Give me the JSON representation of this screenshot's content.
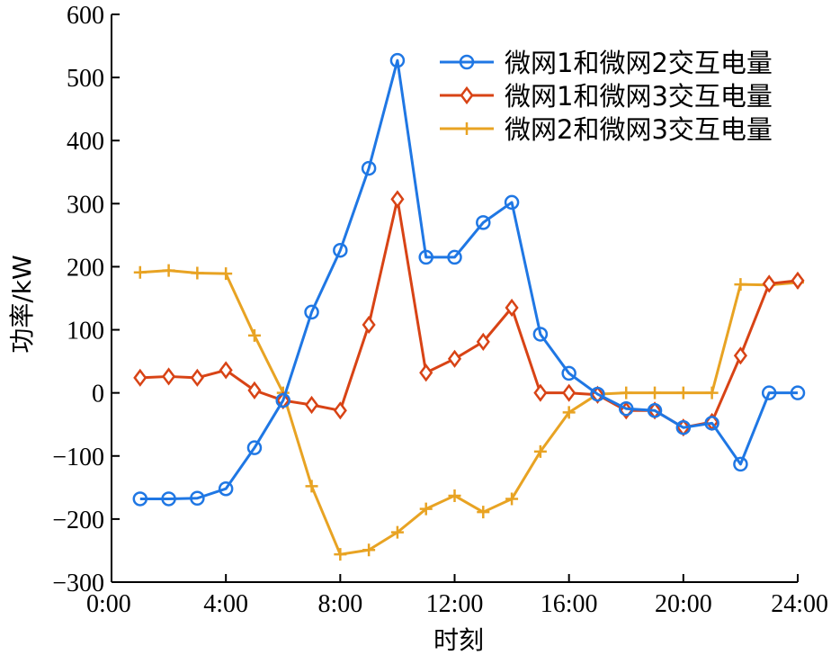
{
  "chart_data": {
    "type": "line",
    "title": "",
    "xlabel": "时刻",
    "ylabel": "功率/kW",
    "x": [
      1,
      2,
      3,
      4,
      5,
      6,
      7,
      8,
      9,
      10,
      11,
      12,
      13,
      14,
      15,
      16,
      17,
      18,
      19,
      20,
      21,
      22,
      23,
      24
    ],
    "xlim": [
      0,
      24
    ],
    "ylim": [
      -300,
      600
    ],
    "x_ticks": [
      {
        "value": 0,
        "label": "0:00"
      },
      {
        "value": 4,
        "label": "4:00"
      },
      {
        "value": 8,
        "label": "8:00"
      },
      {
        "value": 12,
        "label": "12:00"
      },
      {
        "value": 16,
        "label": "16:00"
      },
      {
        "value": 20,
        "label": "20:00"
      },
      {
        "value": 24,
        "label": "24:00"
      }
    ],
    "y_ticks": [
      {
        "value": 600,
        "label": "600"
      },
      {
        "value": 500,
        "label": "500"
      },
      {
        "value": 400,
        "label": "400"
      },
      {
        "value": 300,
        "label": "300"
      },
      {
        "value": 200,
        "label": "200"
      },
      {
        "value": 100,
        "label": "100"
      },
      {
        "value": 0,
        "label": "0"
      },
      {
        "value": -100,
        "label": "−100"
      },
      {
        "value": -200,
        "label": "−200"
      },
      {
        "value": -300,
        "label": "−300"
      }
    ],
    "grid": false,
    "legend_position": "top-right",
    "series": [
      {
        "name": "微网1和微网2交互电量",
        "color": "#1f77e4",
        "marker": "circle",
        "values": [
          -168,
          -168,
          -167,
          -152,
          -87,
          -12,
          128,
          226,
          356,
          527,
          215,
          215,
          270,
          302,
          93,
          31,
          -2,
          -25,
          -28,
          -55,
          -48,
          -113,
          0,
          0
        ]
      },
      {
        "name": "微网1和微网3交互电量",
        "color": "#d84315",
        "marker": "diamond",
        "values": [
          24,
          26,
          24,
          36,
          4,
          -12,
          -19,
          -28,
          108,
          307,
          32,
          54,
          81,
          135,
          0,
          0,
          -3,
          -28,
          -28,
          -55,
          -46,
          59,
          173,
          178
        ]
      },
      {
        "name": "微网2和微网3交互电量",
        "color": "#e8a323",
        "marker": "plus",
        "values": [
          191,
          194,
          190,
          189,
          91,
          0,
          -148,
          -256,
          -249,
          -221,
          -184,
          -163,
          -189,
          -168,
          -93,
          -31,
          -2,
          0,
          0,
          0,
          0,
          172,
          171,
          175
        ]
      }
    ]
  }
}
